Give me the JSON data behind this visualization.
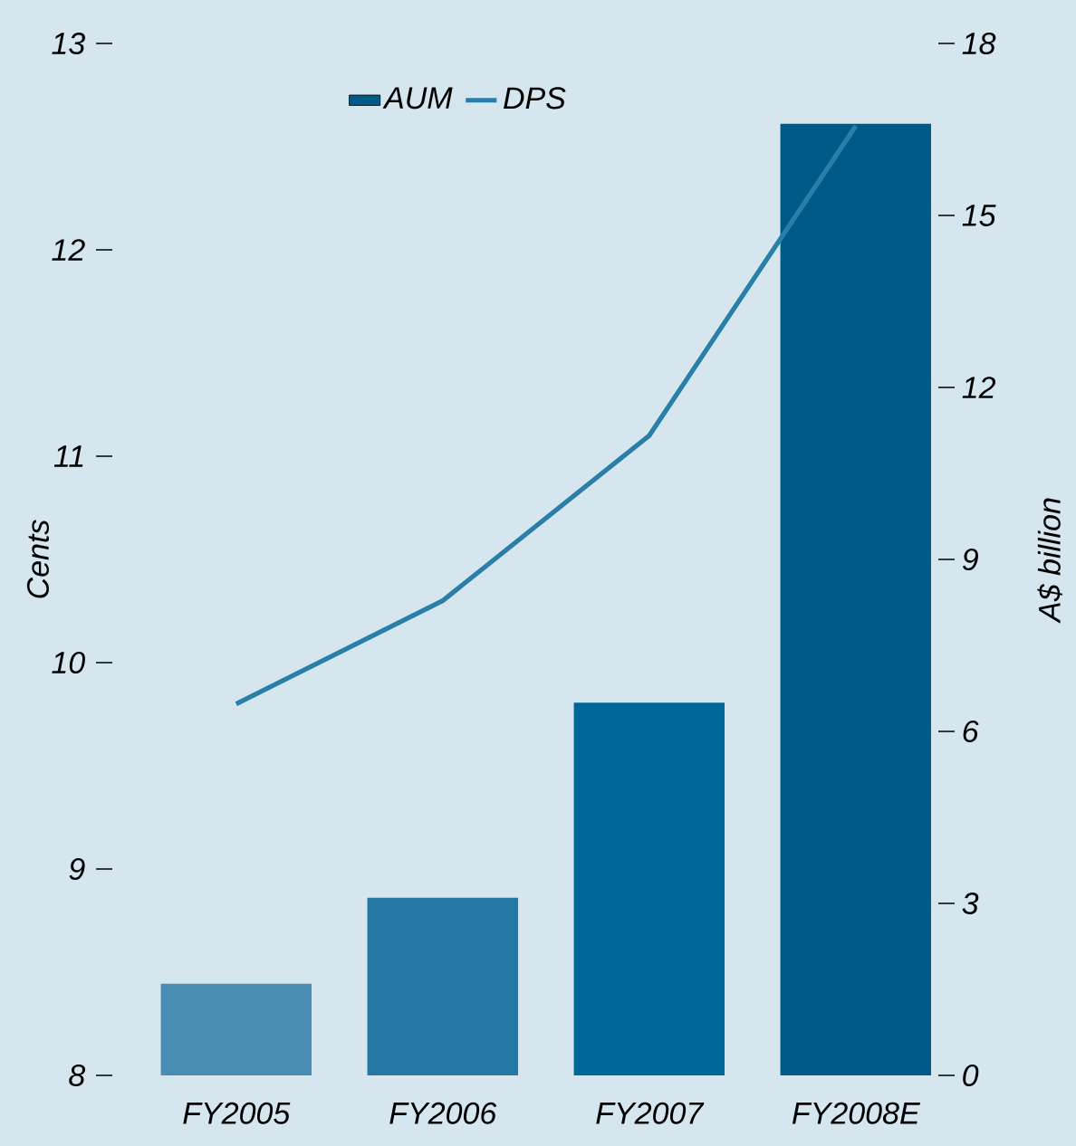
{
  "chart_data": {
    "type": "bar",
    "categories": [
      "FY2005",
      "FY2006",
      "FY2007",
      "FY2008E"
    ],
    "ylabel": "Cents",
    "y2label": "A$ billion",
    "ylim": [
      8,
      13
    ],
    "yticks": [
      8,
      9,
      10,
      11,
      12,
      13
    ],
    "y2lim": [
      0,
      18
    ],
    "y2ticks": [
      0,
      3,
      6,
      9,
      12,
      15,
      18
    ],
    "legend": "top",
    "series": [
      {
        "name": "AUM",
        "axis": "y2",
        "color": "#005a87",
        "colors": [
          "#4a8db3",
          "#2479a4",
          "#006898",
          "#005a87"
        ],
        "values": [
          1.6,
          3.1,
          6.5,
          16.6
        ]
      },
      {
        "name": "DPS",
        "type": "line",
        "color": "#2a7fa8",
        "values": [
          9.8,
          10.3,
          11.1,
          12.6
        ]
      }
    ]
  }
}
